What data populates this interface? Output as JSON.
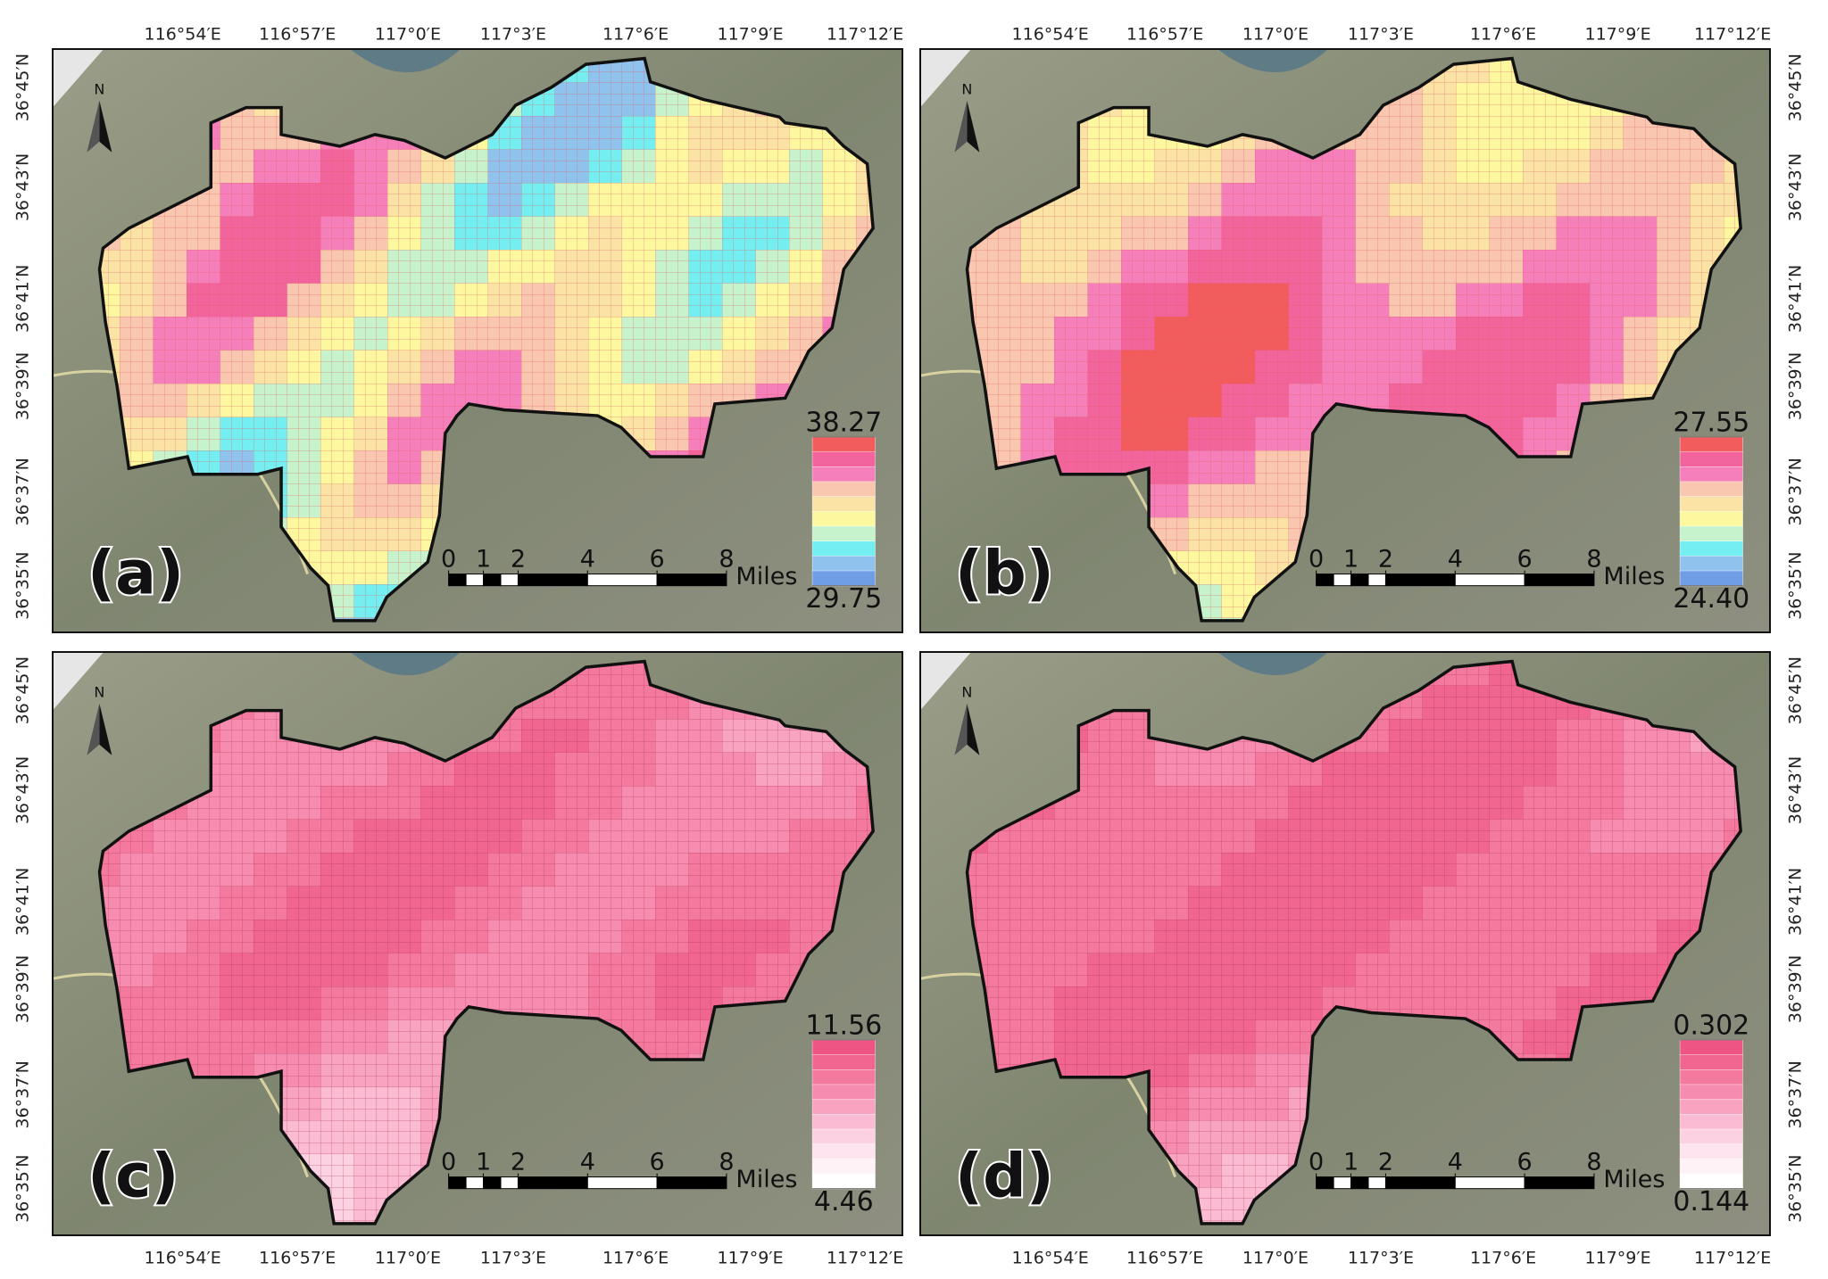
{
  "lon_labels": [
    "116°54′E",
    "116°57′E",
    "117°0′E",
    "117°3′E",
    "117°6′E",
    "117°9′E",
    "117°12′E"
  ],
  "lat_labels": [
    "36°45′N",
    "36°43′N",
    "36°41′N",
    "36°39′N",
    "36°37′N",
    "36°35′N"
  ],
  "north": "N",
  "scale_bar": {
    "ticks": [
      0,
      1,
      2,
      4,
      6,
      8
    ],
    "unit": "Miles"
  },
  "panels": [
    {
      "label": "(a)",
      "legend_max": 38.27,
      "legend_min": 29.75,
      "colors": [
        "#f25c5c",
        "#f2649c",
        "#f57fba",
        "#f9c6b0",
        "#fbe3a6",
        "#fdf7a0",
        "#c6f3cc",
        "#74eef0",
        "#90c2ee",
        "#6f9ee6"
      ]
    },
    {
      "label": "(b)",
      "legend_max": 27.55,
      "legend_min": {
        "value": 24.4,
        "label": "24.40"
      },
      "colors": [
        "#f25c5c",
        "#f2649c",
        "#f57fba",
        "#f9c6b0",
        "#fbe3a6",
        "#fdf7a0",
        "#c6f3cc",
        "#74eef0",
        "#90c2ee",
        "#6f9ee6"
      ]
    },
    {
      "label": "(c)",
      "legend_max": 11.56,
      "legend_min": 4.46,
      "colors": [
        "#ee5585",
        "#f06690",
        "#f3799e",
        "#f68caf",
        "#f8a4c1",
        "#fbbcd3",
        "#fcd2e2",
        "#fee4ee",
        "#fff2f7",
        "#ffffff"
      ]
    },
    {
      "label": "(d)",
      "legend_max": 0.302,
      "legend_min": 0.144,
      "colors": [
        "#ee5585",
        "#f06690",
        "#f3799e",
        "#f68caf",
        "#f8a4c1",
        "#fbbcd3",
        "#fcd2e2",
        "#fee4ee",
        "#fff2f7",
        "#ffffff"
      ]
    }
  ]
}
